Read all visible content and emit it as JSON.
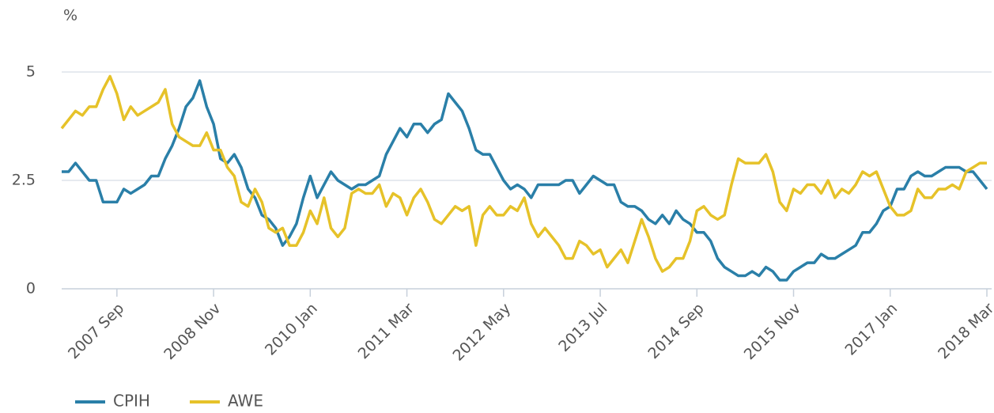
{
  "chart_data": {
    "type": "line",
    "y_label": "%",
    "categories": [
      null,
      null,
      null,
      null,
      null,
      null,
      null,
      null,
      "2007 Sep",
      null,
      null,
      null,
      null,
      null,
      null,
      null,
      null,
      null,
      null,
      null,
      null,
      null,
      "2008 Nov",
      null,
      null,
      null,
      null,
      null,
      null,
      null,
      null,
      null,
      null,
      null,
      null,
      null,
      "2010 Jan",
      null,
      null,
      null,
      null,
      null,
      null,
      null,
      null,
      null,
      null,
      null,
      null,
      null,
      "2011 Mar",
      null,
      null,
      null,
      null,
      null,
      null,
      null,
      null,
      null,
      null,
      null,
      null,
      null,
      "2012 May",
      null,
      null,
      null,
      null,
      null,
      null,
      null,
      null,
      null,
      null,
      null,
      null,
      null,
      "2013 Jul",
      null,
      null,
      null,
      null,
      null,
      null,
      null,
      null,
      null,
      null,
      null,
      null,
      null,
      "2014 Sep",
      null,
      null,
      null,
      null,
      null,
      null,
      null,
      null,
      null,
      null,
      null,
      null,
      null,
      "2015 Nov",
      null,
      null,
      null,
      null,
      null,
      null,
      null,
      null,
      null,
      null,
      null,
      null,
      null,
      "2017 Jan",
      null,
      null,
      null,
      null,
      null,
      null,
      null,
      null,
      null,
      null,
      null,
      null,
      null,
      "2018 Mar"
    ],
    "series": [
      {
        "name": "CPIH",
        "color": "#2a7fa8",
        "values": [
          2.7,
          2.7,
          2.9,
          2.7,
          2.5,
          2.5,
          2.0,
          2.0,
          2.0,
          2.3,
          2.2,
          2.3,
          2.4,
          2.6,
          2.6,
          3.0,
          3.3,
          3.7,
          4.2,
          4.4,
          4.8,
          4.2,
          3.8,
          3.0,
          2.9,
          3.1,
          2.8,
          2.3,
          2.1,
          1.7,
          1.6,
          1.4,
          1.0,
          1.2,
          1.5,
          2.1,
          2.6,
          2.1,
          2.4,
          2.7,
          2.5,
          2.4,
          2.3,
          2.4,
          2.4,
          2.5,
          2.6,
          3.1,
          3.4,
          3.7,
          3.5,
          3.8,
          3.8,
          3.6,
          3.8,
          3.9,
          4.5,
          4.3,
          4.1,
          3.7,
          3.2,
          3.1,
          3.1,
          2.8,
          2.5,
          2.3,
          2.4,
          2.3,
          2.1,
          2.4,
          2.4,
          2.4,
          2.4,
          2.5,
          2.5,
          2.2,
          2.4,
          2.6,
          2.5,
          2.4,
          2.4,
          2.0,
          1.9,
          1.9,
          1.8,
          1.6,
          1.5,
          1.7,
          1.5,
          1.8,
          1.6,
          1.5,
          1.3,
          1.3,
          1.1,
          0.7,
          0.5,
          0.4,
          0.3,
          0.3,
          0.4,
          0.3,
          0.5,
          0.4,
          0.2,
          0.2,
          0.4,
          0.5,
          0.6,
          0.6,
          0.8,
          0.7,
          0.7,
          0.8,
          0.9,
          1.0,
          1.3,
          1.3,
          1.5,
          1.8,
          1.9,
          2.3,
          2.3,
          2.6,
          2.7,
          2.6,
          2.6,
          2.7,
          2.8,
          2.8,
          2.8,
          2.7,
          2.7,
          2.5,
          2.3
        ]
      },
      {
        "name": "AWE",
        "color": "#e6c229",
        "values": [
          3.7,
          3.9,
          4.1,
          4.0,
          4.2,
          4.2,
          4.6,
          4.9,
          4.5,
          3.9,
          4.2,
          4.0,
          4.1,
          4.2,
          4.3,
          4.6,
          3.8,
          3.5,
          3.4,
          3.3,
          3.3,
          3.6,
          3.2,
          3.2,
          2.8,
          2.6,
          2.0,
          1.9,
          2.3,
          2.0,
          1.4,
          1.3,
          1.4,
          1.0,
          1.0,
          1.3,
          1.8,
          1.5,
          2.1,
          1.4,
          1.2,
          1.4,
          2.2,
          2.3,
          2.2,
          2.2,
          2.4,
          1.9,
          2.2,
          2.1,
          1.7,
          2.1,
          2.3,
          2.0,
          1.6,
          1.5,
          1.7,
          1.9,
          1.8,
          1.9,
          1.0,
          1.7,
          1.9,
          1.7,
          1.7,
          1.9,
          1.8,
          2.1,
          1.5,
          1.2,
          1.4,
          1.2,
          1.0,
          0.7,
          0.7,
          1.1,
          1.0,
          0.8,
          0.9,
          0.5,
          0.7,
          0.9,
          0.6,
          1.1,
          1.6,
          1.2,
          0.7,
          0.4,
          0.5,
          0.7,
          0.7,
          1.1,
          1.8,
          1.9,
          1.7,
          1.6,
          1.7,
          2.4,
          3.0,
          2.9,
          2.9,
          2.9,
          3.1,
          2.7,
          2.0,
          1.8,
          2.3,
          2.2,
          2.4,
          2.4,
          2.2,
          2.5,
          2.1,
          2.3,
          2.2,
          2.4,
          2.7,
          2.6,
          2.7,
          2.3,
          1.9,
          1.7,
          1.7,
          1.8,
          2.3,
          2.1,
          2.1,
          2.3,
          2.3,
          2.4,
          2.3,
          2.7,
          2.8,
          2.9,
          2.9
        ]
      }
    ],
    "ylim": [
      0,
      5
    ],
    "yticks": [
      0,
      2.5,
      5
    ],
    "grid": true,
    "legend": "bottom-left"
  }
}
